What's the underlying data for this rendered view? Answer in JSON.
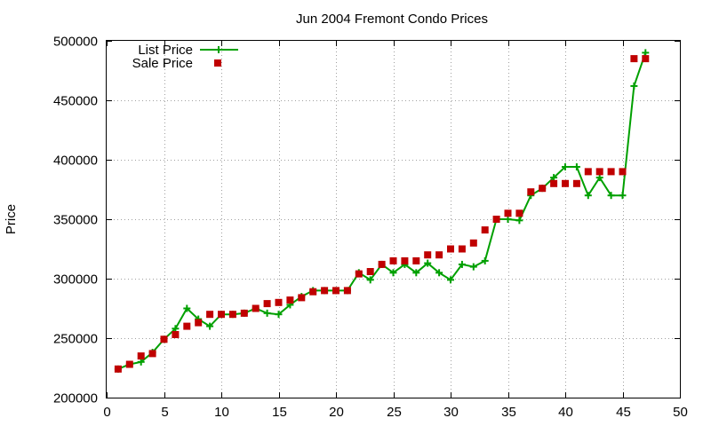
{
  "chart_data": {
    "type": "line",
    "title": "Jun 2004 Fremont Condo Prices",
    "xlabel": "",
    "ylabel": "Price",
    "xlim": [
      0,
      50
    ],
    "ylim": [
      200000,
      500000
    ],
    "xticks": [
      0,
      5,
      10,
      15,
      20,
      25,
      30,
      35,
      40,
      45,
      50
    ],
    "yticks": [
      200000,
      250000,
      300000,
      350000,
      400000,
      450000,
      500000
    ],
    "grid": true,
    "legend_position": "top-left",
    "series": [
      {
        "name": "List Price",
        "style": "line-with-plus-markers",
        "color": "#00a000",
        "x": [
          1,
          2,
          3,
          4,
          5,
          6,
          7,
          8,
          9,
          10,
          11,
          12,
          13,
          14,
          15,
          16,
          17,
          18,
          19,
          20,
          21,
          22,
          23,
          24,
          25,
          26,
          27,
          28,
          29,
          30,
          31,
          32,
          33,
          34,
          35,
          36,
          37,
          38,
          39,
          40,
          41,
          42,
          43,
          44,
          45,
          46,
          47
        ],
        "y": [
          224000,
          228000,
          230000,
          238000,
          249000,
          258000,
          275000,
          266000,
          260000,
          270000,
          270000,
          271000,
          275000,
          271000,
          270000,
          278000,
          285000,
          290000,
          290000,
          290000,
          290000,
          305000,
          299000,
          312000,
          305000,
          312000,
          305000,
          313000,
          305000,
          299000,
          312000,
          310000,
          315000,
          350000,
          350000,
          349000,
          370000,
          376000,
          385000,
          394000,
          394000,
          370000,
          385000,
          370000,
          370000,
          462000,
          490000
        ]
      },
      {
        "name": "Sale Price",
        "style": "square-markers",
        "color": "#c00000",
        "x": [
          1,
          2,
          3,
          4,
          5,
          6,
          7,
          8,
          9,
          10,
          11,
          12,
          13,
          14,
          15,
          16,
          17,
          18,
          19,
          20,
          21,
          22,
          23,
          24,
          25,
          26,
          27,
          28,
          29,
          30,
          31,
          32,
          33,
          34,
          35,
          36,
          37,
          38,
          39,
          40,
          41,
          42,
          43,
          44,
          45,
          46,
          47
        ],
        "y": [
          224000,
          228000,
          235000,
          237000,
          249000,
          253000,
          260000,
          263000,
          270000,
          270000,
          270000,
          271000,
          275000,
          279000,
          280000,
          282000,
          284000,
          289000,
          290000,
          290000,
          290000,
          304000,
          306000,
          312000,
          315000,
          315000,
          315000,
          320000,
          320000,
          325000,
          325000,
          330000,
          341000,
          350000,
          355000,
          355000,
          373000,
          376000,
          380000,
          380000,
          380000,
          390000,
          390000,
          390000,
          390000,
          485000,
          485000
        ]
      }
    ]
  }
}
